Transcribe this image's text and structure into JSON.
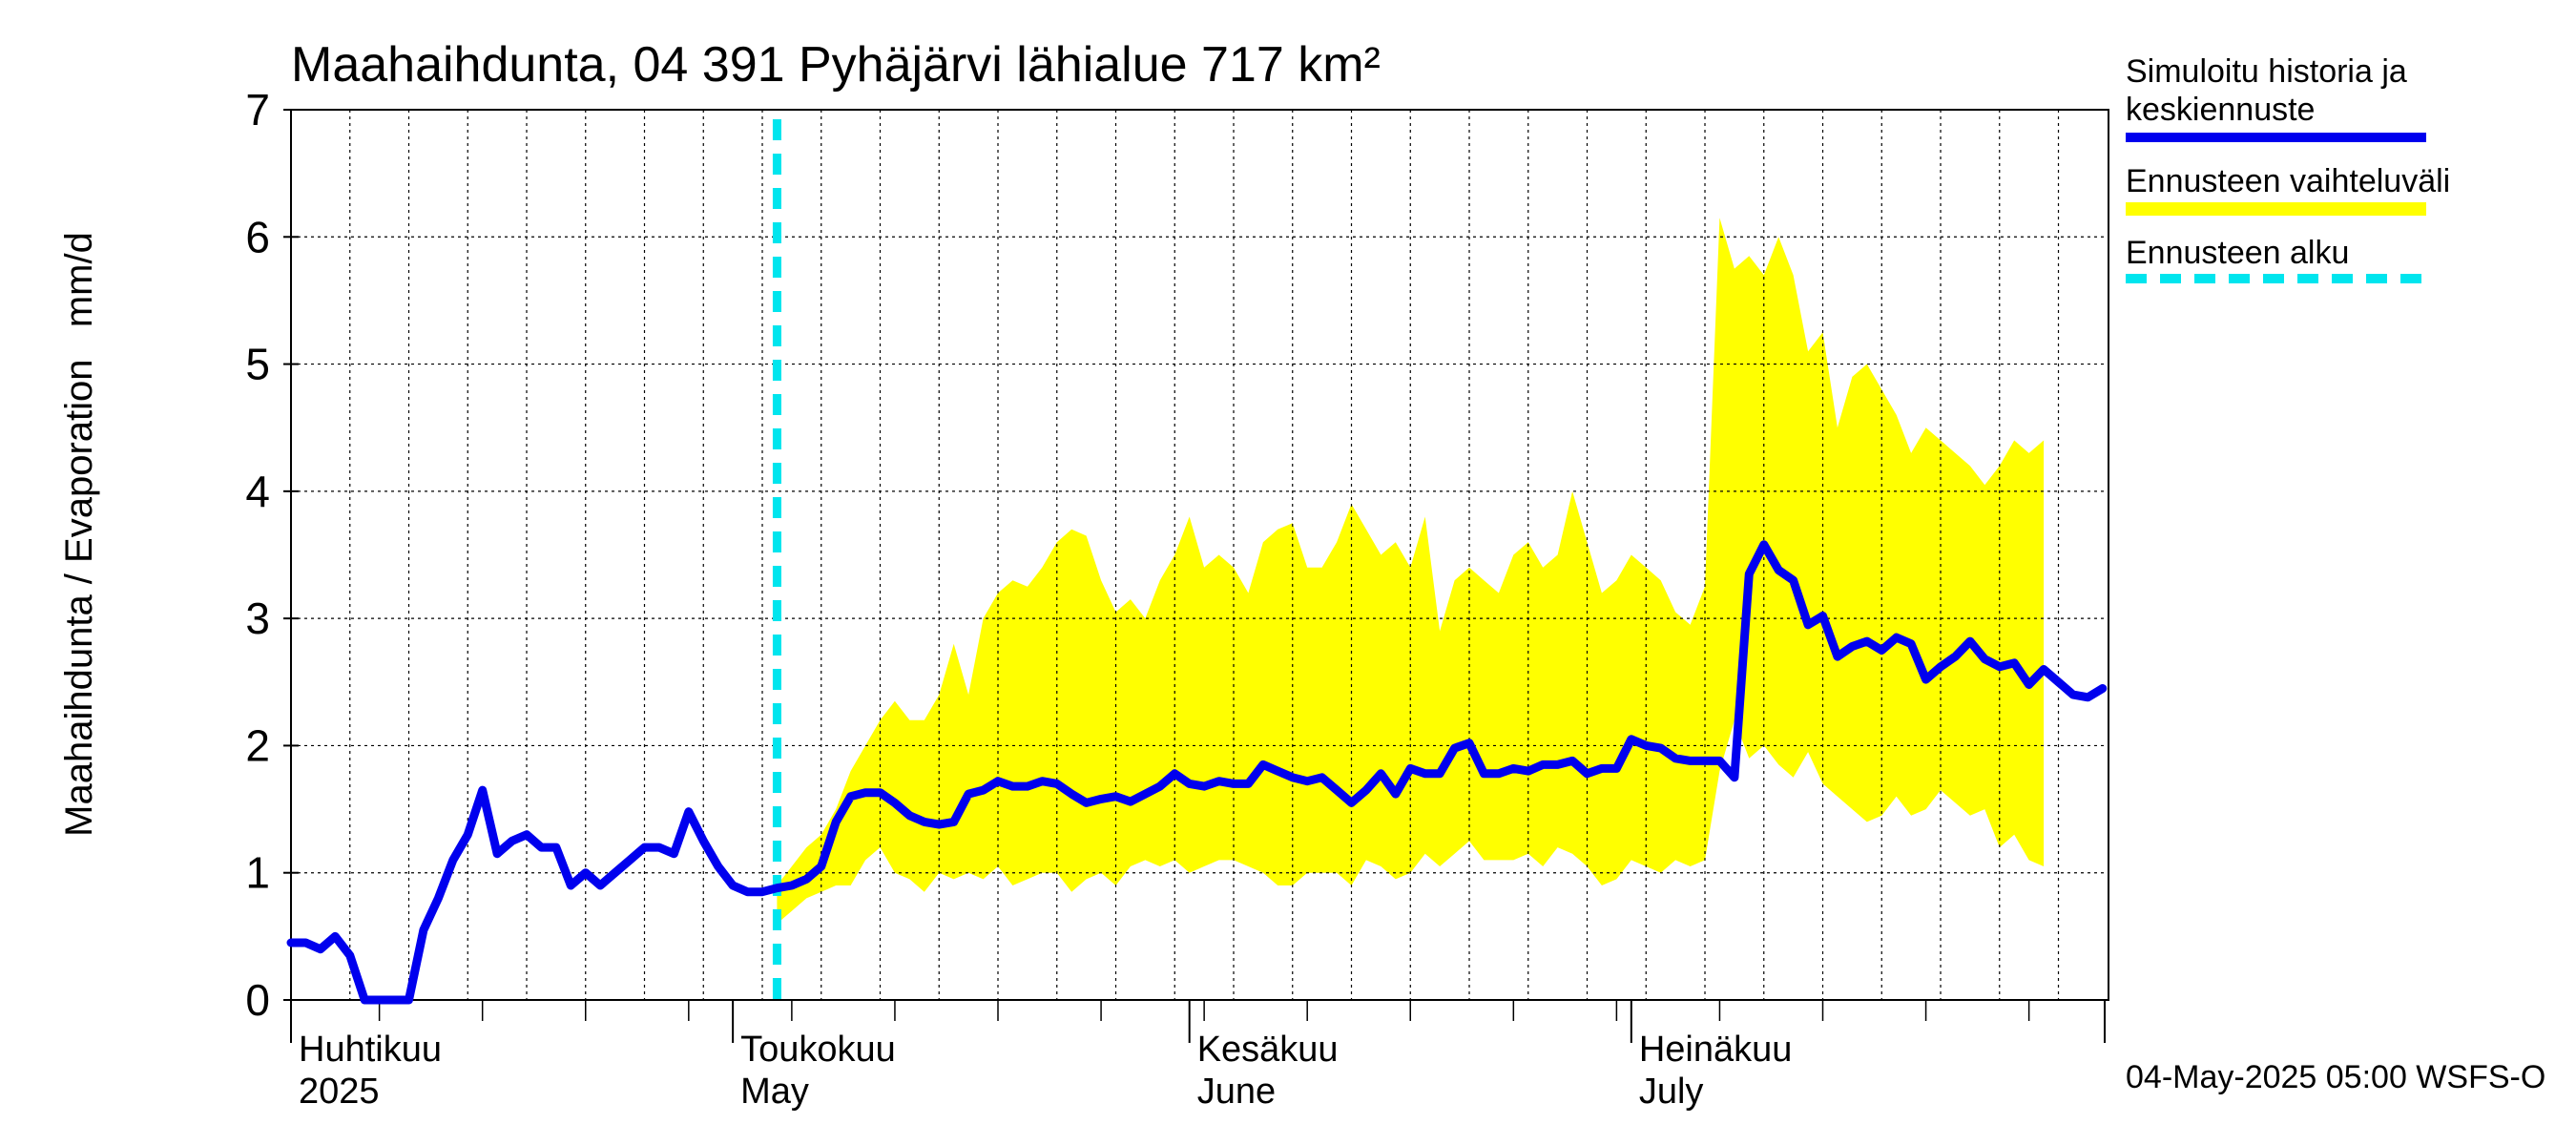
{
  "chart_data": {
    "type": "line",
    "title": "Maahaihdunta, 04 391 Pyhäjärvi lähialue 717 km²",
    "ylabel": "Maahaihdunta / Evaporation   mm/d",
    "xlabel": "",
    "ylim": [
      0,
      7
    ],
    "yticks": [
      "0",
      "1",
      "2",
      "3",
      "4",
      "5",
      "6",
      "7"
    ],
    "grid": true,
    "legend_position": "right",
    "x_start": "2025-04-01",
    "x_end": "2025-07-31",
    "forecast_start": "2025-05-04",
    "month_labels": [
      {
        "date": "2025-04-01",
        "line1": "Huhtikuu",
        "line2": "2025"
      },
      {
        "date": "2025-05-01",
        "line1": "Toukokuu",
        "line2": "May"
      },
      {
        "date": "2025-06-01",
        "line1": "Kesäkuu",
        "line2": "June"
      },
      {
        "date": "2025-07-01",
        "line1": "Heinäkuu",
        "line2": "July"
      }
    ],
    "series": [
      {
        "name": "Simuloitu historia ja keskiennuste",
        "color": "#0000ee",
        "points": [
          [
            "2025-04-01",
            0.45
          ],
          [
            "2025-04-02",
            0.45
          ],
          [
            "2025-04-03",
            0.4
          ],
          [
            "2025-04-04",
            0.5
          ],
          [
            "2025-04-05",
            0.35
          ],
          [
            "2025-04-06",
            0.0
          ],
          [
            "2025-04-07",
            0.0
          ],
          [
            "2025-04-08",
            0.0
          ],
          [
            "2025-04-09",
            0.0
          ],
          [
            "2025-04-10",
            0.55
          ],
          [
            "2025-04-11",
            0.8
          ],
          [
            "2025-04-12",
            1.1
          ],
          [
            "2025-04-13",
            1.3
          ],
          [
            "2025-04-14",
            1.65
          ],
          [
            "2025-04-15",
            1.15
          ],
          [
            "2025-04-16",
            1.25
          ],
          [
            "2025-04-17",
            1.3
          ],
          [
            "2025-04-18",
            1.2
          ],
          [
            "2025-04-19",
            1.2
          ],
          [
            "2025-04-20",
            0.9
          ],
          [
            "2025-04-21",
            1.0
          ],
          [
            "2025-04-22",
            0.9
          ],
          [
            "2025-04-23",
            1.0
          ],
          [
            "2025-04-24",
            1.1
          ],
          [
            "2025-04-25",
            1.2
          ],
          [
            "2025-04-26",
            1.2
          ],
          [
            "2025-04-27",
            1.15
          ],
          [
            "2025-04-28",
            1.48
          ],
          [
            "2025-04-29",
            1.25
          ],
          [
            "2025-04-30",
            1.05
          ],
          [
            "2025-05-01",
            0.9
          ],
          [
            "2025-05-02",
            0.85
          ],
          [
            "2025-05-03",
            0.85
          ],
          [
            "2025-05-04",
            0.88
          ],
          [
            "2025-05-05",
            0.9
          ],
          [
            "2025-05-06",
            0.95
          ],
          [
            "2025-05-07",
            1.05
          ],
          [
            "2025-05-08",
            1.4
          ],
          [
            "2025-05-09",
            1.6
          ],
          [
            "2025-05-10",
            1.63
          ],
          [
            "2025-05-11",
            1.63
          ],
          [
            "2025-05-12",
            1.55
          ],
          [
            "2025-05-13",
            1.45
          ],
          [
            "2025-05-14",
            1.4
          ],
          [
            "2025-05-15",
            1.38
          ],
          [
            "2025-05-16",
            1.4
          ],
          [
            "2025-05-17",
            1.62
          ],
          [
            "2025-05-18",
            1.65
          ],
          [
            "2025-05-19",
            1.72
          ],
          [
            "2025-05-20",
            1.68
          ],
          [
            "2025-05-21",
            1.68
          ],
          [
            "2025-05-22",
            1.72
          ],
          [
            "2025-05-23",
            1.7
          ],
          [
            "2025-05-24",
            1.62
          ],
          [
            "2025-05-25",
            1.55
          ],
          [
            "2025-05-26",
            1.58
          ],
          [
            "2025-05-27",
            1.6
          ],
          [
            "2025-05-28",
            1.56
          ],
          [
            "2025-05-29",
            1.62
          ],
          [
            "2025-05-30",
            1.68
          ],
          [
            "2025-05-31",
            1.78
          ],
          [
            "2025-06-01",
            1.7
          ],
          [
            "2025-06-02",
            1.68
          ],
          [
            "2025-06-03",
            1.72
          ],
          [
            "2025-06-04",
            1.7
          ],
          [
            "2025-06-05",
            1.7
          ],
          [
            "2025-06-06",
            1.85
          ],
          [
            "2025-06-07",
            1.8
          ],
          [
            "2025-06-08",
            1.75
          ],
          [
            "2025-06-09",
            1.72
          ],
          [
            "2025-06-10",
            1.75
          ],
          [
            "2025-06-11",
            1.65
          ],
          [
            "2025-06-12",
            1.55
          ],
          [
            "2025-06-13",
            1.65
          ],
          [
            "2025-06-14",
            1.78
          ],
          [
            "2025-06-15",
            1.62
          ],
          [
            "2025-06-16",
            1.82
          ],
          [
            "2025-06-17",
            1.78
          ],
          [
            "2025-06-18",
            1.78
          ],
          [
            "2025-06-19",
            1.98
          ],
          [
            "2025-06-20",
            2.02
          ],
          [
            "2025-06-21",
            1.78
          ],
          [
            "2025-06-22",
            1.78
          ],
          [
            "2025-06-23",
            1.82
          ],
          [
            "2025-06-24",
            1.8
          ],
          [
            "2025-06-25",
            1.85
          ],
          [
            "2025-06-26",
            1.85
          ],
          [
            "2025-06-27",
            1.88
          ],
          [
            "2025-06-28",
            1.78
          ],
          [
            "2025-06-29",
            1.82
          ],
          [
            "2025-06-30",
            1.82
          ],
          [
            "2025-07-01",
            2.05
          ],
          [
            "2025-07-02",
            2.0
          ],
          [
            "2025-07-03",
            1.98
          ],
          [
            "2025-07-04",
            1.9
          ],
          [
            "2025-07-05",
            1.88
          ],
          [
            "2025-07-06",
            1.88
          ],
          [
            "2025-07-07",
            1.88
          ],
          [
            "2025-07-08",
            1.75
          ],
          [
            "2025-07-09",
            3.35
          ],
          [
            "2025-07-10",
            3.58
          ],
          [
            "2025-07-11",
            3.38
          ],
          [
            "2025-07-12",
            3.3
          ],
          [
            "2025-07-13",
            2.95
          ],
          [
            "2025-07-14",
            3.02
          ],
          [
            "2025-07-15",
            2.7
          ],
          [
            "2025-07-16",
            2.78
          ],
          [
            "2025-07-17",
            2.82
          ],
          [
            "2025-07-18",
            2.75
          ],
          [
            "2025-07-19",
            2.85
          ],
          [
            "2025-07-20",
            2.8
          ],
          [
            "2025-07-21",
            2.52
          ],
          [
            "2025-07-22",
            2.62
          ],
          [
            "2025-07-23",
            2.7
          ],
          [
            "2025-07-24",
            2.82
          ],
          [
            "2025-07-25",
            2.68
          ],
          [
            "2025-07-26",
            2.62
          ],
          [
            "2025-07-27",
            2.65
          ],
          [
            "2025-07-28",
            2.48
          ],
          [
            "2025-07-29",
            2.6
          ],
          [
            "2025-07-30",
            2.5
          ],
          [
            "2025-07-31",
            2.4
          ],
          [
            "2025-08-01",
            2.38
          ],
          [
            "2025-08-02",
            2.45
          ]
        ]
      },
      {
        "name": "Ennusteen vaihteluväli",
        "color": "#ffff00",
        "kind": "band",
        "points": [
          [
            "2025-05-04",
            0.6,
            0.9
          ],
          [
            "2025-05-05",
            0.7,
            1.05
          ],
          [
            "2025-05-06",
            0.8,
            1.2
          ],
          [
            "2025-05-07",
            0.85,
            1.3
          ],
          [
            "2025-05-08",
            0.9,
            1.5
          ],
          [
            "2025-05-09",
            0.9,
            1.8
          ],
          [
            "2025-05-10",
            1.1,
            2.0
          ],
          [
            "2025-05-11",
            1.2,
            2.2
          ],
          [
            "2025-05-12",
            1.0,
            2.35
          ],
          [
            "2025-05-13",
            0.95,
            2.2
          ],
          [
            "2025-05-14",
            0.85,
            2.2
          ],
          [
            "2025-05-15",
            1.0,
            2.4
          ],
          [
            "2025-05-16",
            0.95,
            2.8
          ],
          [
            "2025-05-17",
            1.0,
            2.4
          ],
          [
            "2025-05-18",
            0.95,
            3.0
          ],
          [
            "2025-05-19",
            1.05,
            3.2
          ],
          [
            "2025-05-20",
            0.9,
            3.3
          ],
          [
            "2025-05-21",
            0.95,
            3.25
          ],
          [
            "2025-05-22",
            1.0,
            3.4
          ],
          [
            "2025-05-23",
            1.0,
            3.6
          ],
          [
            "2025-05-24",
            0.85,
            3.7
          ],
          [
            "2025-05-25",
            0.95,
            3.65
          ],
          [
            "2025-05-26",
            1.0,
            3.3
          ],
          [
            "2025-05-27",
            0.9,
            3.05
          ],
          [
            "2025-05-28",
            1.05,
            3.15
          ],
          [
            "2025-05-29",
            1.1,
            3.0
          ],
          [
            "2025-05-30",
            1.05,
            3.3
          ],
          [
            "2025-05-31",
            1.1,
            3.5
          ],
          [
            "2025-06-01",
            1.0,
            3.8
          ],
          [
            "2025-06-02",
            1.05,
            3.4
          ],
          [
            "2025-06-03",
            1.1,
            3.5
          ],
          [
            "2025-06-04",
            1.1,
            3.4
          ],
          [
            "2025-06-05",
            1.05,
            3.2
          ],
          [
            "2025-06-06",
            1.0,
            3.6
          ],
          [
            "2025-06-07",
            0.9,
            3.7
          ],
          [
            "2025-06-08",
            0.9,
            3.75
          ],
          [
            "2025-06-09",
            1.0,
            3.4
          ],
          [
            "2025-06-10",
            1.0,
            3.4
          ],
          [
            "2025-06-11",
            1.0,
            3.6
          ],
          [
            "2025-06-12",
            0.9,
            3.9
          ],
          [
            "2025-06-13",
            1.1,
            3.7
          ],
          [
            "2025-06-14",
            1.05,
            3.5
          ],
          [
            "2025-06-15",
            0.95,
            3.6
          ],
          [
            "2025-06-16",
            1.0,
            3.4
          ],
          [
            "2025-06-17",
            1.15,
            3.8
          ],
          [
            "2025-06-18",
            1.05,
            2.9
          ],
          [
            "2025-06-19",
            1.15,
            3.3
          ],
          [
            "2025-06-20",
            1.25,
            3.4
          ],
          [
            "2025-06-21",
            1.1,
            3.3
          ],
          [
            "2025-06-22",
            1.1,
            3.2
          ],
          [
            "2025-06-23",
            1.1,
            3.5
          ],
          [
            "2025-06-24",
            1.15,
            3.6
          ],
          [
            "2025-06-25",
            1.05,
            3.4
          ],
          [
            "2025-06-26",
            1.2,
            3.5
          ],
          [
            "2025-06-27",
            1.15,
            4.0
          ],
          [
            "2025-06-28",
            1.05,
            3.6
          ],
          [
            "2025-06-29",
            0.9,
            3.2
          ],
          [
            "2025-06-30",
            0.95,
            3.3
          ],
          [
            "2025-07-01",
            1.1,
            3.5
          ],
          [
            "2025-07-02",
            1.05,
            3.4
          ],
          [
            "2025-07-03",
            1.0,
            3.3
          ],
          [
            "2025-07-04",
            1.1,
            3.05
          ],
          [
            "2025-07-05",
            1.05,
            2.95
          ],
          [
            "2025-07-06",
            1.1,
            3.25
          ],
          [
            "2025-07-07",
            1.8,
            6.15
          ],
          [
            "2025-07-08",
            2.2,
            5.75
          ],
          [
            "2025-07-09",
            1.9,
            5.85
          ],
          [
            "2025-07-10",
            2.0,
            5.7
          ],
          [
            "2025-07-11",
            1.85,
            6.0
          ],
          [
            "2025-07-12",
            1.75,
            5.7
          ],
          [
            "2025-07-13",
            1.95,
            5.1
          ],
          [
            "2025-07-14",
            1.7,
            5.25
          ],
          [
            "2025-07-15",
            1.6,
            4.5
          ],
          [
            "2025-07-16",
            1.5,
            4.9
          ],
          [
            "2025-07-17",
            1.4,
            5.0
          ],
          [
            "2025-07-18",
            1.45,
            4.8
          ],
          [
            "2025-07-19",
            1.6,
            4.6
          ],
          [
            "2025-07-20",
            1.45,
            4.3
          ],
          [
            "2025-07-21",
            1.5,
            4.5
          ],
          [
            "2025-07-22",
            1.65,
            4.4
          ],
          [
            "2025-07-23",
            1.55,
            4.3
          ],
          [
            "2025-07-24",
            1.45,
            4.2
          ],
          [
            "2025-07-25",
            1.5,
            4.05
          ],
          [
            "2025-07-26",
            1.2,
            4.2
          ],
          [
            "2025-07-27",
            1.3,
            4.4
          ],
          [
            "2025-07-28",
            1.1,
            4.3
          ],
          [
            "2025-07-29",
            1.05,
            4.4
          ]
        ]
      },
      {
        "name": "Ennusteen alku",
        "color": "#00e5ee",
        "kind": "vline",
        "x": "2025-05-04"
      }
    ]
  },
  "legend": [
    {
      "label_line1": "Simuloitu historia ja",
      "label_line2": "keskiennuste",
      "color": "#0000ee",
      "style": "solid"
    },
    {
      "label_line1": "Ennusteen vaihteluväli",
      "label_line2": "",
      "color": "#ffff00",
      "style": "solid"
    },
    {
      "label_line1": "Ennusteen alku",
      "label_line2": "",
      "color": "#00e5ee",
      "style": "dashed"
    }
  ],
  "footer": "04-May-2025 05:00 WSFS-O"
}
